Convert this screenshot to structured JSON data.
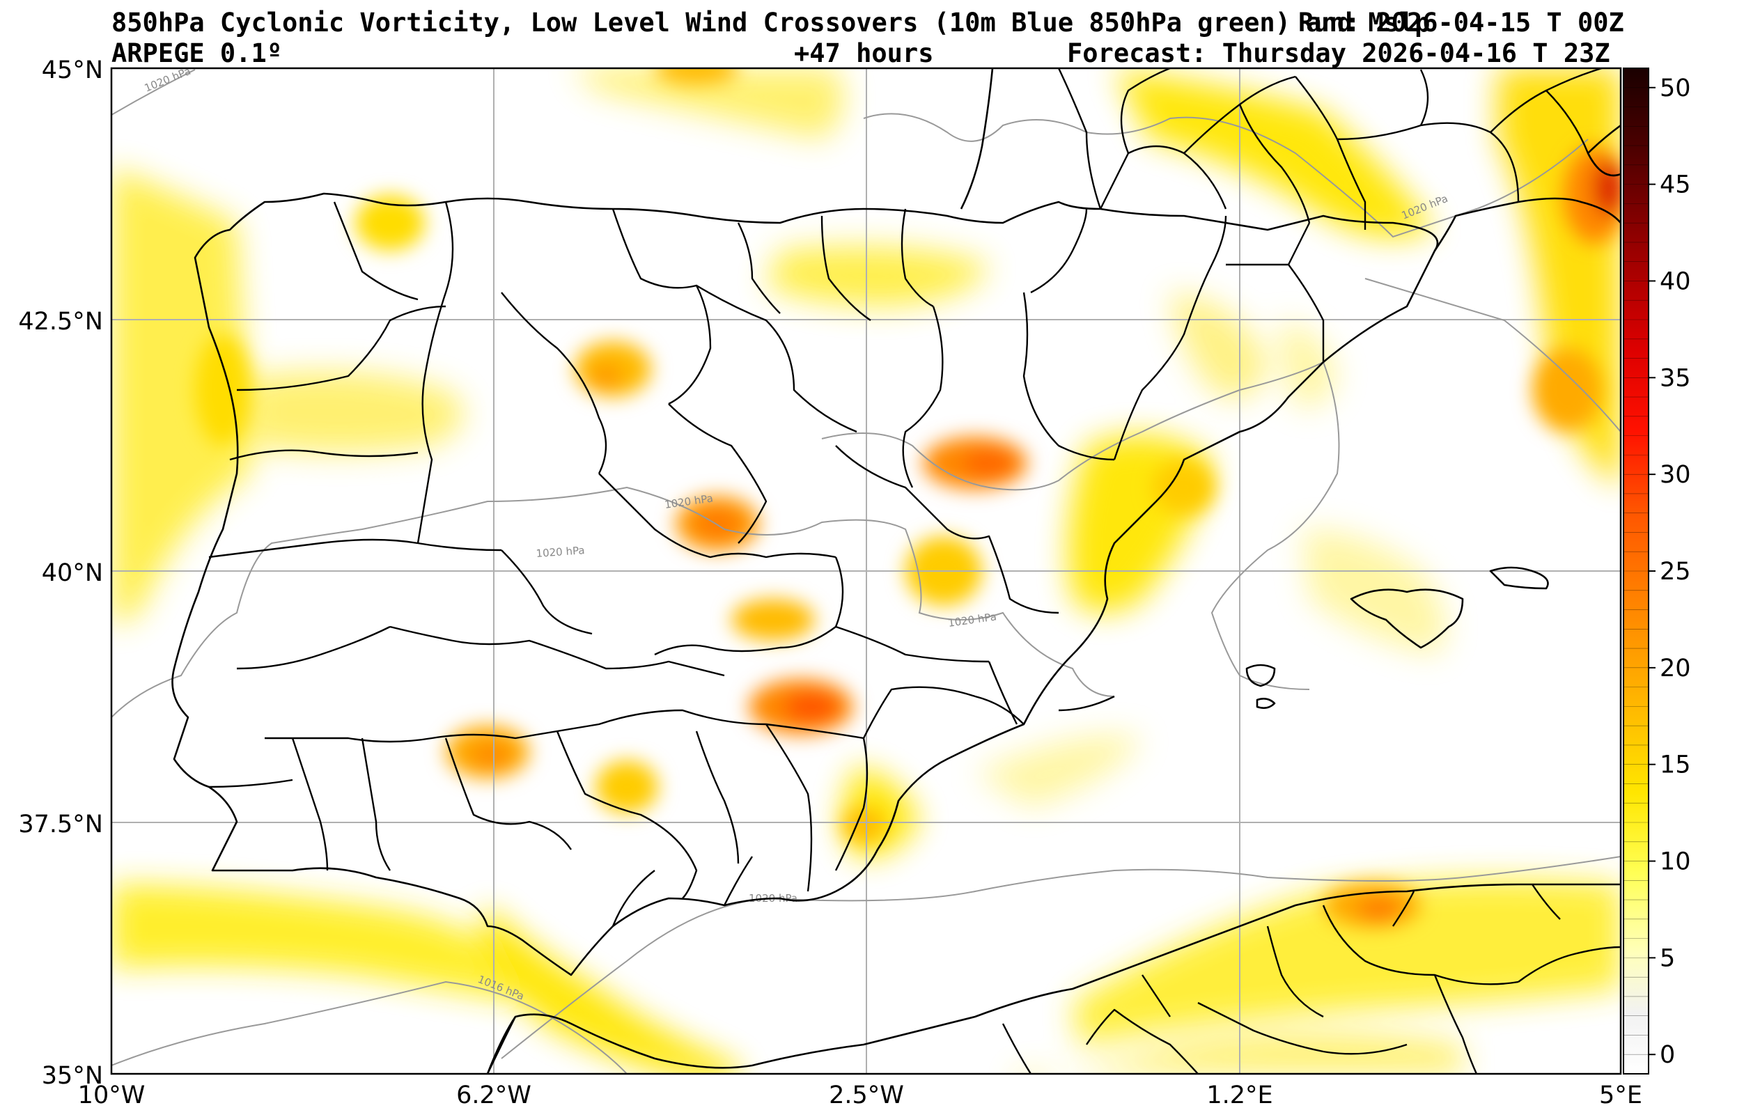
{
  "header": {
    "title": "850hPa Cyclonic Vorticity, Low Level Wind Crossovers (10m Blue 850hPa green) and Mslp",
    "run": "Run: 2026-04-15 T 00Z",
    "model": "ARPEGE 0.1º",
    "lead": "+47 hours",
    "forecast": "Forecast: Thursday 2026-04-16 T 23Z"
  },
  "axes": {
    "lat_labels": [
      "45°N",
      "42.5°N",
      "40°N",
      "37.5°N",
      "35°N"
    ],
    "lon_labels": [
      "10°W",
      "6.2°W",
      "2.5°W",
      "1.2°E",
      "5°E"
    ],
    "lat_range": [
      35,
      45
    ],
    "lon_range": [
      -10,
      5
    ]
  },
  "colorbar": {
    "ticks": [
      "0",
      "5",
      "10",
      "15",
      "20",
      "25",
      "30",
      "35",
      "40",
      "45",
      "50"
    ],
    "range": [
      -1,
      51
    ],
    "colors": [
      "#ffffff",
      "#ffff66",
      "#ffee00",
      "#ffcc00",
      "#ff9900",
      "#ff6600",
      "#ff2200",
      "#e00000",
      "#a00000",
      "#500000",
      "#1a0000"
    ]
  },
  "isobars": [
    "1020 hPa",
    "1020 hPa",
    "1020 hPa",
    "1020 hPa",
    "1020 hPa",
    "1016 hPa",
    "1020 hPa"
  ],
  "vorticity_maxima": [
    {
      "lon": -3.5,
      "lat": 40.4,
      "value": 20
    },
    {
      "lon": -1.5,
      "lat": 41.1,
      "value": 22
    },
    {
      "lon": -2.7,
      "lat": 38.6,
      "value": 24
    },
    {
      "lon": -5.9,
      "lat": 38.1,
      "value": 18
    },
    {
      "lon": -4.8,
      "lat": 41.9,
      "value": 16
    },
    {
      "lon": -1.7,
      "lat": 40.0,
      "value": 14
    },
    {
      "lon": 2.6,
      "lat": 36.6,
      "value": 19
    },
    {
      "lon": 4.8,
      "lat": 43.8,
      "value": 30
    },
    {
      "lon": -3.8,
      "lat": 45.0,
      "value": 14
    }
  ]
}
